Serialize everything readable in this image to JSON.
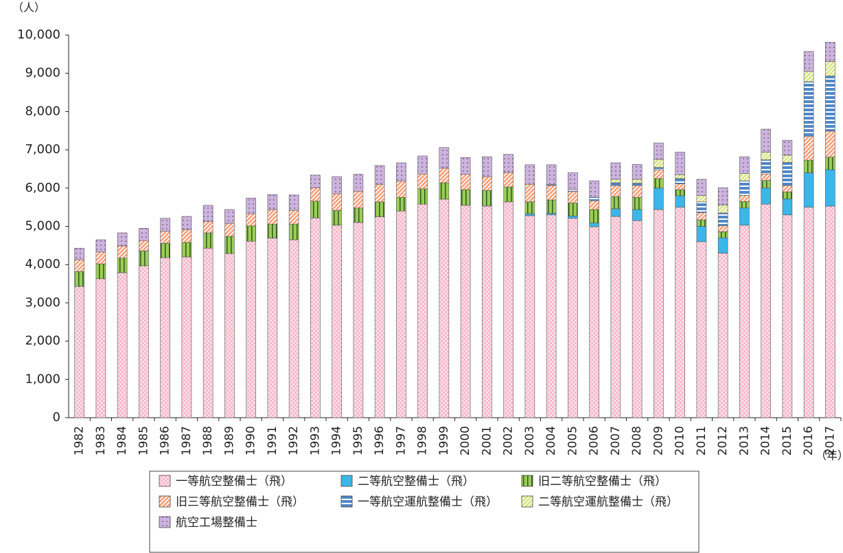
{
  "chart_data": {
    "type": "stacked-bar",
    "y_label": "（人）",
    "x_label": "（年）",
    "categories": [
      "1982",
      "1983",
      "1984",
      "1985",
      "1986",
      "1987",
      "1988",
      "1989",
      "1990",
      "1991",
      "1992",
      "1993",
      "1994",
      "1995",
      "1996",
      "1997",
      "1998",
      "1999",
      "2000",
      "2001",
      "2002",
      "2003",
      "2004",
      "2005",
      "2006",
      "2007",
      "2008",
      "2009",
      "2010",
      "2011",
      "2012",
      "2013",
      "2014",
      "2015",
      "2016",
      "2017"
    ],
    "series": [
      {
        "name": "一等航空整備士（飛）",
        "color": "#f6b8ca",
        "pattern": "checks",
        "values": [
          3430,
          3630,
          3790,
          3970,
          4180,
          4200,
          4430,
          4290,
          4610,
          4690,
          4650,
          5220,
          5030,
          5100,
          5250,
          5400,
          5580,
          5710,
          5550,
          5530,
          5640,
          5280,
          5300,
          5210,
          4990,
          5260,
          5150,
          5440,
          5500,
          4600,
          4300,
          5030,
          5580,
          5300,
          5500,
          5530
        ]
      },
      {
        "name": "二等航空整備士（飛）",
        "color": "#3cb6e8",
        "pattern": "solid",
        "values": [
          0,
          0,
          0,
          0,
          0,
          0,
          0,
          0,
          0,
          0,
          0,
          0,
          0,
          0,
          0,
          0,
          0,
          0,
          0,
          0,
          0,
          50,
          40,
          60,
          100,
          200,
          290,
          560,
          300,
          400,
          400,
          450,
          420,
          420,
          900,
          950
        ]
      },
      {
        "name": "旧二等航空整備士（飛）",
        "color": "#9ccc5a",
        "pattern": "vstripes",
        "values": [
          390,
          390,
          380,
          390,
          380,
          380,
          400,
          450,
          400,
          370,
          410,
          440,
          390,
          380,
          390,
          360,
          400,
          430,
          410,
          410,
          390,
          310,
          350,
          340,
          350,
          320,
          320,
          250,
          160,
          170,
          160,
          170,
          200,
          180,
          330,
          330
        ]
      },
      {
        "name": "旧三等航空整備士（飛）",
        "color": "#f7a07a",
        "pattern": "diag",
        "values": [
          310,
          310,
          320,
          270,
          310,
          340,
          300,
          340,
          320,
          380,
          360,
          350,
          430,
          440,
          460,
          420,
          390,
          380,
          400,
          360,
          380,
          460,
          380,
          300,
          230,
          290,
          310,
          230,
          150,
          190,
          160,
          160,
          170,
          170,
          620,
          680
        ]
      },
      {
        "name": "一等航空運航整備士（飛）",
        "color": "#4f88c8",
        "pattern": "hstripes",
        "values": [
          0,
          0,
          0,
          0,
          0,
          0,
          0,
          0,
          0,
          0,
          0,
          0,
          0,
          0,
          0,
          0,
          0,
          0,
          0,
          0,
          0,
          0,
          20,
          50,
          90,
          70,
          60,
          60,
          140,
          280,
          330,
          380,
          370,
          600,
          1430,
          1440
        ]
      },
      {
        "name": "二等航空運航整備士（飛）",
        "color": "#d6e37e",
        "pattern": "diag",
        "values": [
          0,
          0,
          0,
          0,
          0,
          0,
          0,
          0,
          0,
          0,
          0,
          0,
          0,
          0,
          0,
          0,
          0,
          0,
          0,
          0,
          0,
          0,
          0,
          0,
          0,
          90,
          100,
          210,
          100,
          170,
          210,
          190,
          200,
          190,
          270,
          380
        ]
      },
      {
        "name": "航空工場整備士",
        "color": "#cdb3df",
        "pattern": "dots",
        "values": [
          300,
          320,
          340,
          320,
          340,
          340,
          420,
          360,
          410,
          390,
          400,
          330,
          450,
          440,
          490,
          480,
          470,
          540,
          440,
          520,
          470,
          510,
          520,
          440,
          430,
          430,
          390,
          430,
          590,
          420,
          450,
          440,
          600,
          390,
          520,
          500
        ]
      }
    ],
    "ylim": [
      0,
      10000
    ],
    "yticks": [
      0,
      {
        "value": 1000,
        "label": "1,000"
      },
      {
        "value": 2000,
        "label": "2,000"
      },
      {
        "value": 3000,
        "label": "3,000"
      },
      {
        "value": 4000,
        "label": "4,000"
      },
      {
        "value": 5000,
        "label": "5,000"
      },
      {
        "value": 6000,
        "label": "6,000"
      },
      {
        "value": 7000,
        "label": "7,000"
      },
      {
        "value": 8000,
        "label": "8,000"
      },
      {
        "value": 9000,
        "label": "9,000"
      },
      {
        "value": 10000,
        "label": "10,000"
      }
    ],
    "grid": false
  }
}
